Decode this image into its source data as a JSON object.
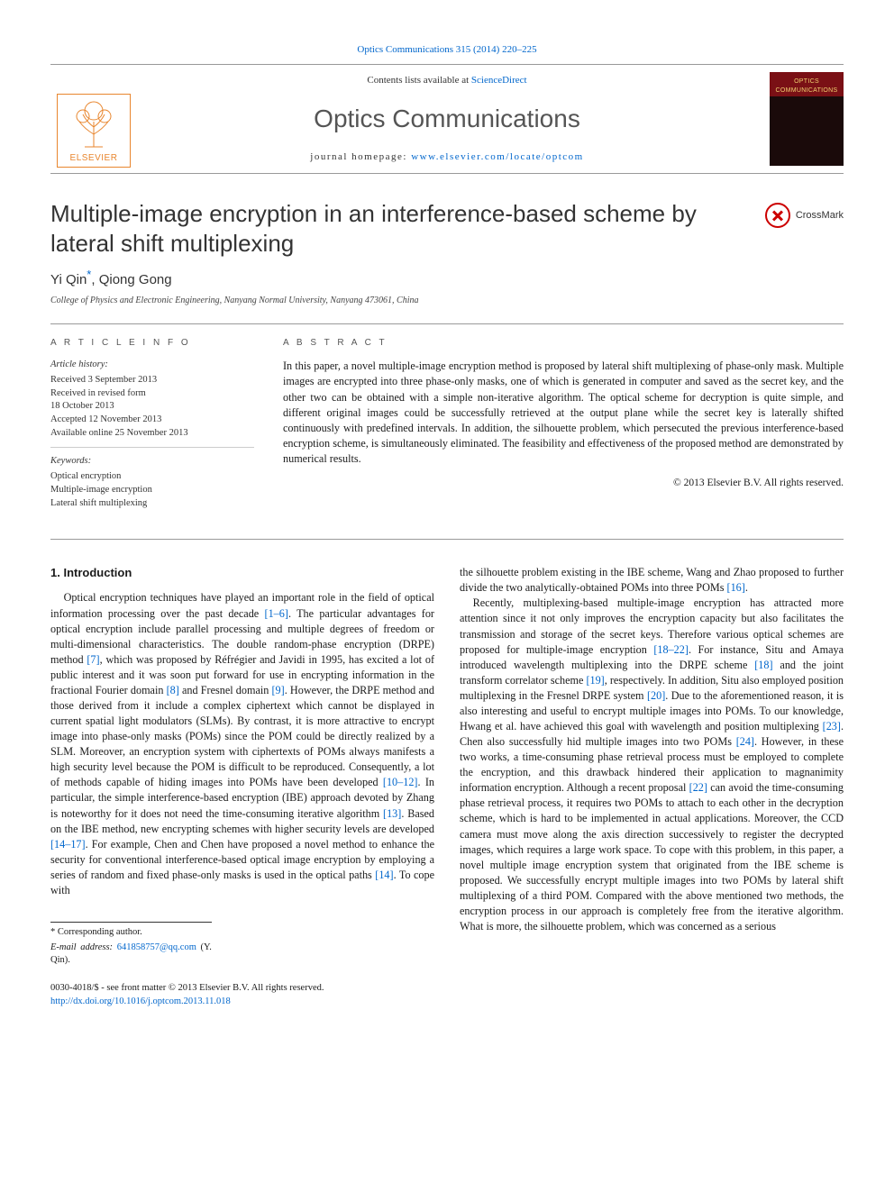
{
  "colors": {
    "link": "#0066cc",
    "text": "#1a1a1a",
    "rule": "#999999",
    "elsevier_orange": "#e8862e",
    "cover_top": "#7a1015",
    "cover_bottom": "#1a0a0a",
    "crossmark_red": "#c00000"
  },
  "top_citation": {
    "prefix": "",
    "link_text": "Optics Communications 315 (2014) 220–225"
  },
  "masthead": {
    "contents_line_prefix": "Contents lists available at ",
    "contents_link": "ScienceDirect",
    "journal_title": "Optics Communications",
    "homepage_label": "journal homepage: ",
    "homepage_url": "www.elsevier.com/locate/optcom",
    "elsevier_label": "ELSEVIER",
    "cover_title_line1": "OPTICS",
    "cover_title_line2": "COMMUNICATIONS"
  },
  "article": {
    "title": "Multiple-image encryption in an interference-based scheme by lateral shift multiplexing",
    "crossmark_label": "CrossMark",
    "authors_html_parts": {
      "a1": "Yi Qin",
      "ast": "*",
      "sep": ", ",
      "a2": "Qiong Gong"
    },
    "affiliation": "College of Physics and Electronic Engineering, Nanyang Normal University, Nanyang 473061, China"
  },
  "meta": {
    "section_label": "A R T I C L E   I N F O",
    "history_label": "Article history:",
    "history_lines": [
      "Received 3 September 2013",
      "Received in revised form",
      "18 October 2013",
      "Accepted 12 November 2013",
      "Available online 25 November 2013"
    ],
    "keywords_label": "Keywords:",
    "keywords": [
      "Optical encryption",
      "Multiple-image encryption",
      "Lateral shift multiplexing"
    ]
  },
  "abstract": {
    "section_label": "A B S T R A C T",
    "text": "In this paper, a novel multiple-image encryption method is proposed by lateral shift multiplexing of phase-only mask. Multiple images are encrypted into three phase-only masks, one of which is generated in computer and saved as the secret key, and the other two can be obtained with a simple non-iterative algorithm. The optical scheme for decryption is quite simple, and different original images could be successfully retrieved at the output plane while the secret key is laterally shifted continuously with predefined intervals. In addition, the silhouette problem, which persecuted the previous interference-based encryption scheme, is simultaneously eliminated. The feasibility and effectiveness of the proposed method are demonstrated by numerical results.",
    "copyright": "© 2013 Elsevier B.V. All rights reserved."
  },
  "body": {
    "section_number": "1.",
    "section_title": "Introduction",
    "col1_para1_parts": [
      {
        "t": "text",
        "v": "Optical encryption techniques have played an important role in the field of optical information processing over the past decade "
      },
      {
        "t": "ref",
        "v": "[1–6]"
      },
      {
        "t": "text",
        "v": ". The particular advantages for optical encryption include parallel processing and multiple degrees of freedom or multi-dimensional characteristics. The double random-phase encryption (DRPE) method "
      },
      {
        "t": "ref",
        "v": "[7]"
      },
      {
        "t": "text",
        "v": ", which was proposed by Réfrégier and Javidi in 1995, has excited a lot of public interest and it was soon put forward for use in encrypting information in the fractional Fourier domain "
      },
      {
        "t": "ref",
        "v": "[8]"
      },
      {
        "t": "text",
        "v": " and Fresnel domain "
      },
      {
        "t": "ref",
        "v": "[9]"
      },
      {
        "t": "text",
        "v": ". However, the DRPE method and those derived from it include a complex ciphertext which cannot be displayed in current spatial light modulators (SLMs). By contrast, it is more attractive to encrypt image into phase-only masks (POMs) since the POM could be directly realized by a SLM. Moreover, an encryption system with ciphertexts of POMs always manifests a high security level because the POM is difficult to be reproduced. Consequently, a lot of methods capable of hiding images into POMs have been developed "
      },
      {
        "t": "ref",
        "v": "[10–12]"
      },
      {
        "t": "text",
        "v": ". In particular, the simple interference-based encryption (IBE) approach devoted by Zhang is noteworthy for it does not need the time-consuming iterative algorithm "
      },
      {
        "t": "ref",
        "v": "[13]"
      },
      {
        "t": "text",
        "v": ". Based on the IBE method, new encrypting schemes with higher security levels are developed "
      },
      {
        "t": "ref",
        "v": "[14–17]"
      },
      {
        "t": "text",
        "v": ". For example, Chen and Chen have proposed a novel method to enhance the security for conventional interference-based optical image encryption by employing a series of random and fixed phase-only masks is used in the optical paths "
      },
      {
        "t": "ref",
        "v": "[14]"
      },
      {
        "t": "text",
        "v": ". To cope with"
      }
    ],
    "col2_para1_parts": [
      {
        "t": "text",
        "v": "the silhouette problem existing in the IBE scheme, Wang and Zhao proposed to further divide the two analytically-obtained POMs into three POMs "
      },
      {
        "t": "ref",
        "v": "[16]"
      },
      {
        "t": "text",
        "v": "."
      }
    ],
    "col2_para2_parts": [
      {
        "t": "text",
        "v": "Recently, multiplexing-based multiple-image encryption has attracted more attention since it not only improves the encryption capacity but also facilitates the transmission and storage of the secret keys. Therefore various optical schemes are proposed for multiple-image encryption "
      },
      {
        "t": "ref",
        "v": "[18–22]"
      },
      {
        "t": "text",
        "v": ". For instance, Situ and Amaya introduced wavelength multiplexing into the DRPE scheme "
      },
      {
        "t": "ref",
        "v": "[18]"
      },
      {
        "t": "text",
        "v": " and the joint transform correlator scheme "
      },
      {
        "t": "ref",
        "v": "[19]"
      },
      {
        "t": "text",
        "v": ", respectively. In addition, Situ also employed position multiplexing in the Fresnel DRPE system "
      },
      {
        "t": "ref",
        "v": "[20]"
      },
      {
        "t": "text",
        "v": ". Due to the aforementioned reason, it is also interesting and useful to encrypt multiple images into POMs. To our knowledge, Hwang et al. have achieved this goal with wavelength and position multiplexing "
      },
      {
        "t": "ref",
        "v": "[23]"
      },
      {
        "t": "text",
        "v": ". Chen also successfully hid multiple images into two POMs "
      },
      {
        "t": "ref",
        "v": "[24]"
      },
      {
        "t": "text",
        "v": ". However, in these two works, a time-consuming phase retrieval process must be employed to complete the encryption, and this drawback hindered their application to magnanimity information encryption. Although a recent proposal "
      },
      {
        "t": "ref",
        "v": "[22]"
      },
      {
        "t": "text",
        "v": " can avoid the time-consuming phase retrieval process, it requires two POMs to attach to each other in the decryption scheme, which is hard to be implemented in actual applications. Moreover, the CCD camera must move along the axis direction successively to register the decrypted images, which requires a large work space. To cope with this problem, in this paper, a novel multiple image encryption system that originated from the IBE scheme is proposed. We successfully encrypt multiple images into two POMs by lateral shift multiplexing of a third POM. Compared with the above mentioned two methods, the encryption process in our approach is completely free from the iterative algorithm. What is more, the silhouette problem, which was concerned as a serious"
      }
    ]
  },
  "footnotes": {
    "corresponding": "* Corresponding author.",
    "email_label": "E-mail address: ",
    "email": "641858757@qq.com",
    "email_paren": " (Y. Qin)."
  },
  "bottom": {
    "issn_line": "0030-4018/$ - see front matter © 2013 Elsevier B.V. All rights reserved.",
    "doi_url": "http://dx.doi.org/10.1016/j.optcom.2013.11.018"
  }
}
